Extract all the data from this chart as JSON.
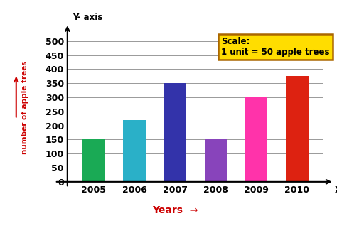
{
  "categories": [
    "2005",
    "2006",
    "2007",
    "2008",
    "2009",
    "2010"
  ],
  "values": [
    150,
    220,
    350,
    150,
    300,
    375
  ],
  "bar_colors": [
    "#1aaa55",
    "#2ab0c8",
    "#3333aa",
    "#8844bb",
    "#ff33aa",
    "#dd2211"
  ],
  "xlabel": "Years",
  "ylabel": "number of apple trees",
  "ylim": [
    0,
    530
  ],
  "yticks": [
    0,
    50,
    100,
    150,
    200,
    250,
    300,
    350,
    400,
    450,
    500
  ],
  "xlabel_color": "#cc0000",
  "ylabel_color": "#cc0000",
  "xaxis_label": "X- axis",
  "yaxis_label": "Y- axis",
  "scale_text_line1": "Scale:",
  "scale_text_line2": "1 unit = 50 apple trees",
  "scale_box_facecolor": "#ffdd00",
  "scale_box_edgecolor": "#aa6600",
  "background_color": "#ffffff",
  "grid_color": "#999999",
  "bar_width": 0.55,
  "tick_fontsize": 9,
  "tick_fontweight": "bold"
}
